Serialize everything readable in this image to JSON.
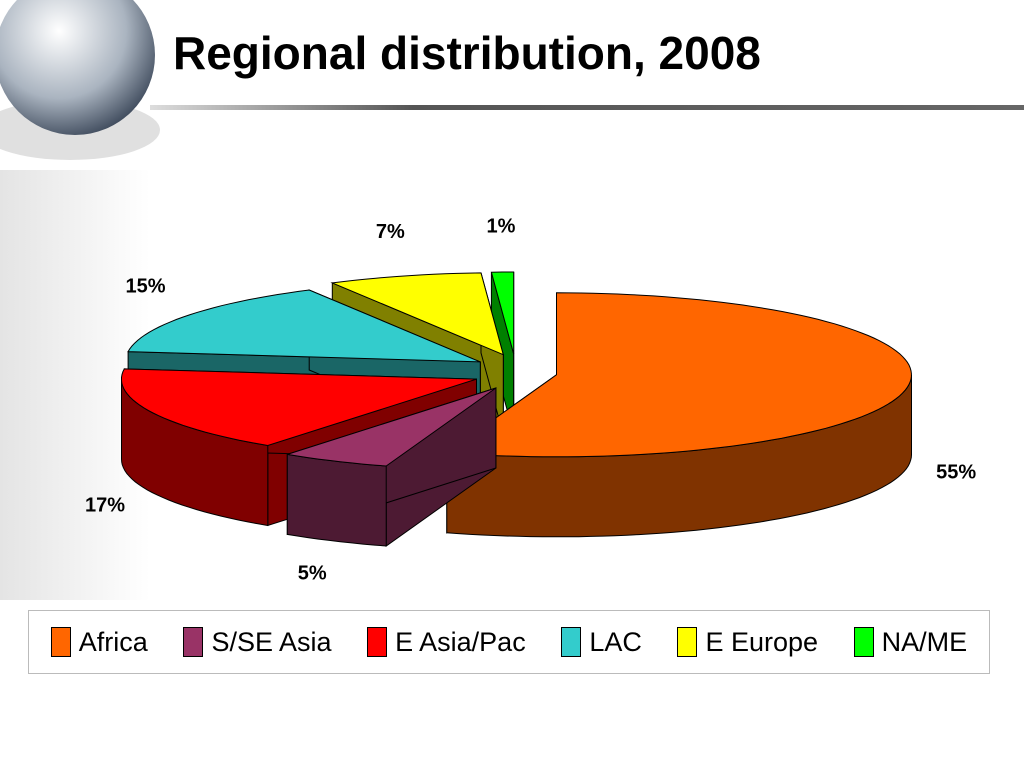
{
  "chart_data": {
    "type": "pie",
    "title": "Regional distribution, 2008",
    "categories": [
      "Africa",
      "S/SE Asia",
      "E Asia/Pac",
      "LAC",
      "E Europe",
      "NA/ME"
    ],
    "values": [
      55,
      5,
      17,
      15,
      7,
      1
    ],
    "value_labels": [
      "55%",
      "5%",
      "17%",
      "15%",
      "7%",
      "1%"
    ],
    "colors": [
      "#ff6600",
      "#993366",
      "#ff0000",
      "#33cccc",
      "#ffff00",
      "#00ff00"
    ],
    "legend": "bottom"
  }
}
